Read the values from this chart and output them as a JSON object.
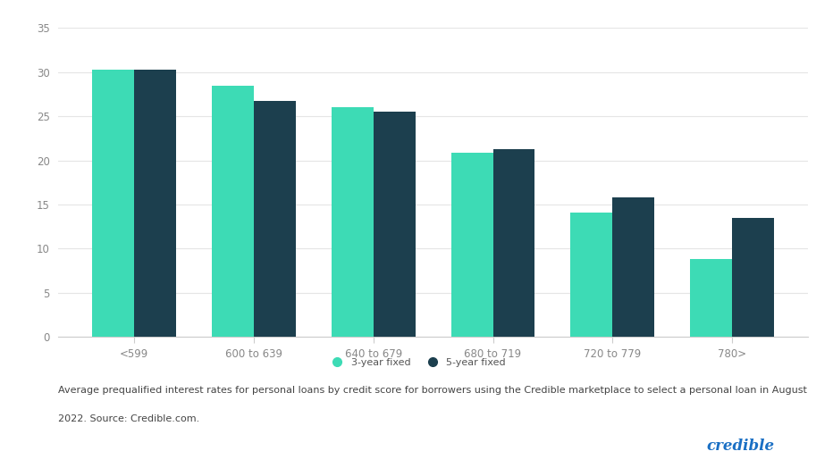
{
  "categories": [
    "<599",
    "600 to 639",
    "640 to 679",
    "680 to 719",
    "720 to 779",
    "780>"
  ],
  "three_year": [
    30.3,
    28.5,
    26.0,
    20.9,
    14.1,
    8.8
  ],
  "five_year": [
    30.3,
    26.7,
    25.5,
    21.3,
    15.8,
    13.5
  ],
  "color_3yr": "#3DDBB5",
  "color_5yr": "#1C3F4E",
  "ylim": [
    0,
    35
  ],
  "yticks": [
    0,
    5,
    10,
    15,
    20,
    25,
    30,
    35
  ],
  "legend_3yr": "3-year fixed",
  "legend_5yr": "5-year fixed",
  "caption_line1": "Average prequalified interest rates for personal loans by credit score for borrowers using the Credible marketplace to select a personal loan in August",
  "caption_line2": "2022. Source: Credible.com.",
  "credible_text": "credible",
  "credible_color": "#1A6FC4",
  "bg_color": "#FFFFFF",
  "bar_width": 0.35,
  "tick_fontsize": 8.5,
  "caption_fontsize": 8.0,
  "legend_fontsize": 8.0,
  "grid_color": "#E5E5E5",
  "spine_color": "#CCCCCC",
  "tick_label_color": "#888888"
}
